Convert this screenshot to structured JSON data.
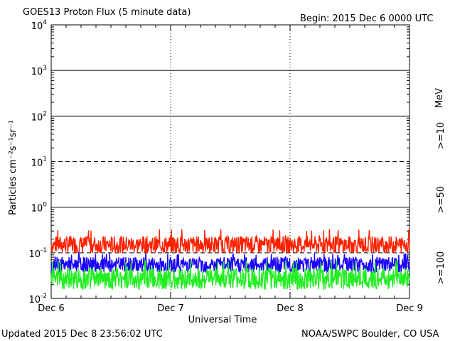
{
  "header": {
    "title": "GOES13 Proton Flux (5 minute data)",
    "begin": "Begin: 2015 Dec 6 0000 UTC"
  },
  "footer": {
    "updated": "Updated 2015 Dec  8 23:56:02 UTC",
    "credit": "NOAA/SWPC Boulder, CO USA"
  },
  "colors": {
    "ge10": "#ff2000",
    "ge50": "#1a00ff",
    "ge100": "#22ee22",
    "axis": "#000000"
  },
  "chart_data": {
    "type": "line",
    "title": "GOES13 Proton Flux (5 minute data)",
    "xlabel": "Universal Time",
    "ylabel": "Particles cm⁻²s⁻¹sr⁻¹",
    "yscale": "log",
    "ylim": [
      0.01,
      10000
    ],
    "y_ticks": [
      {
        "value": 0.01,
        "base": "10",
        "exp": "-2"
      },
      {
        "value": 0.1,
        "base": "10",
        "exp": "-1"
      },
      {
        "value": 1,
        "base": "10",
        "exp": "0"
      },
      {
        "value": 10,
        "base": "10",
        "exp": "1"
      },
      {
        "value": 100,
        "base": "10",
        "exp": "2"
      },
      {
        "value": 1000,
        "base": "10",
        "exp": "3"
      },
      {
        "value": 10000,
        "base": "10",
        "exp": "4"
      }
    ],
    "x_ticks": [
      "Dec 6",
      "Dec 7",
      "Dec 8",
      "Dec 9"
    ],
    "xlim": [
      "2015-12-06 00:00",
      "2015-12-09 00:00"
    ],
    "threshold_lines": [
      {
        "value": 10,
        "style": "dashed"
      },
      {
        "value": 0.1,
        "style": "dashed"
      }
    ],
    "legend_unit": "MeV",
    "series": [
      {
        "name": ">=10",
        "color": "#ff2000",
        "typical": 0.15,
        "min": 0.1,
        "max": 0.33
      },
      {
        "name": ">=50",
        "color": "#1a00ff",
        "typical": 0.055,
        "min": 0.035,
        "max": 0.1
      },
      {
        "name": ">=100",
        "color": "#22ee22",
        "typical": 0.027,
        "min": 0.016,
        "max": 0.07
      }
    ],
    "grid": "horizontal at decades, dotted vertical at day boundaries",
    "legend_position": "right"
  }
}
